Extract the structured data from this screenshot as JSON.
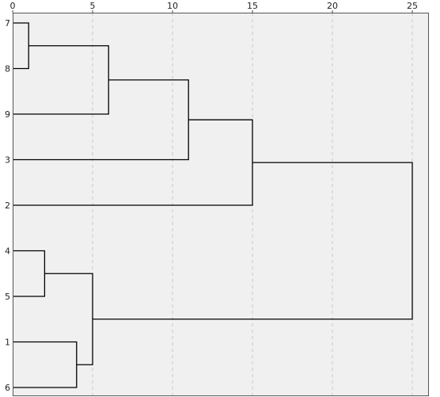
{
  "chart_data": {
    "type": "dendrogram",
    "orientation": "horizontal",
    "title": "",
    "xlabel": "",
    "ylabel": "",
    "xlim": [
      0,
      25
    ],
    "x_ticks": [
      0,
      5,
      10,
      15,
      20,
      25
    ],
    "x_tick_labels": [
      "0",
      "5",
      "10",
      "15",
      "20",
      "25"
    ],
    "grid": "vertical dashed",
    "leaf_order": [
      "7",
      "8",
      "9",
      "3",
      "2",
      "4",
      "5",
      "1",
      "6"
    ],
    "merges": [
      {
        "children": [
          "7",
          "8"
        ],
        "height": 1
      },
      {
        "children": [
          "4",
          "5"
        ],
        "height": 2
      },
      {
        "children": [
          "1",
          "6"
        ],
        "height": 4
      },
      {
        "children": [
          "4,5",
          "1,6"
        ],
        "height": 5
      },
      {
        "children": [
          "7,8",
          "9"
        ],
        "height": 6
      },
      {
        "children": [
          "7,8,9",
          "3"
        ],
        "height": 11
      },
      {
        "children": [
          "7,8,9,3",
          "2"
        ],
        "height": 15
      },
      {
        "children": [
          "7,8,9,3,2",
          "4,5,1,6"
        ],
        "height": 25
      }
    ]
  },
  "colors": {
    "plot_background": "#f0f0f0",
    "page_background": "#ffffff",
    "link": "#000000",
    "frame": "#555555",
    "grid": "#c8c8c8"
  }
}
